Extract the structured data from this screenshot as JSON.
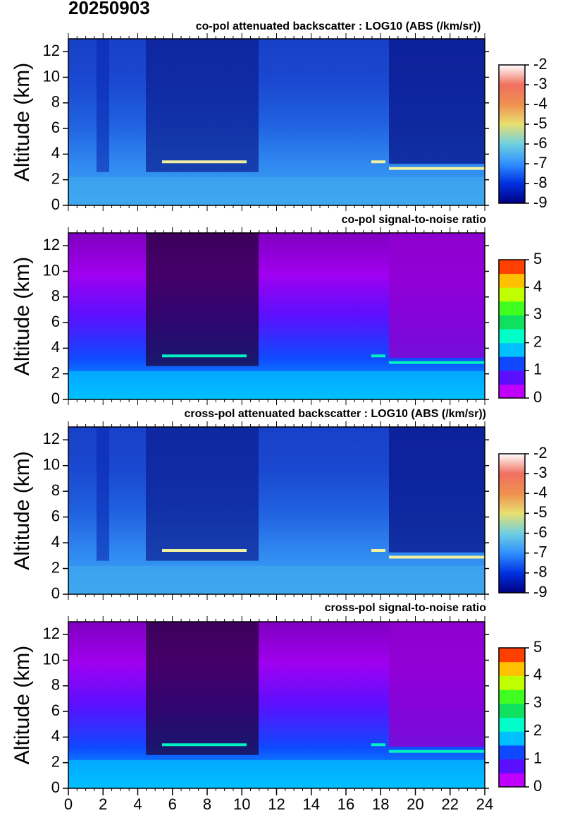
{
  "header": {
    "title": "20250903"
  },
  "chart_data": [
    {
      "type": "heatmap",
      "title": "co-pol attenuated backscatter : LOG10 (ABS (/km/sr))",
      "y_label": "Altitude (km)",
      "xlim": [
        0,
        24
      ],
      "ylim": [
        0,
        13
      ],
      "yticks": [
        0,
        2,
        4,
        6,
        8,
        10,
        12
      ],
      "colorbar": {
        "lim": [
          -9,
          -2
        ],
        "ticks": [
          -9,
          -8,
          -7,
          -6,
          -5,
          -4,
          -3,
          -2
        ],
        "discrete": false,
        "colors": [
          "#000080",
          "#0030e0",
          "#3090ff",
          "#70d0e0",
          "#e8e070",
          "#f09050",
          "#f07060",
          "#ffffff"
        ]
      }
    },
    {
      "type": "heatmap",
      "title": "co-pol signal-to-noise ratio",
      "y_label": "Altitude (km)",
      "xlim": [
        0,
        24
      ],
      "ylim": [
        0,
        13
      ],
      "yticks": [
        0,
        2,
        4,
        6,
        8,
        10,
        12
      ],
      "colorbar": {
        "lim": [
          0,
          5
        ],
        "ticks": [
          0,
          1,
          2,
          3,
          4,
          5
        ],
        "discrete": true,
        "colors": [
          "#c000ff",
          "#5a10ff",
          "#1048ff",
          "#00c0ff",
          "#00ffc8",
          "#10e060",
          "#40ff20",
          "#c0ff00",
          "#ffc000",
          "#ff4000"
        ]
      }
    },
    {
      "type": "heatmap",
      "title": "cross-pol attenuated backscatter : LOG10 (ABS (/km/sr))",
      "y_label": "Altitude (km)",
      "xlim": [
        0,
        24
      ],
      "ylim": [
        0,
        13
      ],
      "yticks": [
        0,
        2,
        4,
        6,
        8,
        10,
        12
      ],
      "colorbar": {
        "lim": [
          -9,
          -2
        ],
        "ticks": [
          -9,
          -8,
          -7,
          -6,
          -5,
          -4,
          -3,
          -2
        ],
        "discrete": false,
        "colors": [
          "#000080",
          "#0030e0",
          "#3090ff",
          "#70d0e0",
          "#e8e070",
          "#f09050",
          "#f07060",
          "#ffffff"
        ]
      }
    },
    {
      "type": "heatmap",
      "title": "cross-pol signal-to-noise ratio",
      "y_label": "Altitude (km)",
      "xlim": [
        0,
        24
      ],
      "ylim": [
        0,
        13
      ],
      "yticks": [
        0,
        2,
        4,
        6,
        8,
        10,
        12
      ],
      "xticks": [
        0,
        2,
        4,
        6,
        8,
        10,
        12,
        14,
        16,
        18,
        20,
        22,
        24
      ],
      "colorbar": {
        "lim": [
          0,
          5
        ],
        "ticks": [
          0,
          1,
          2,
          3,
          4,
          5
        ],
        "discrete": true,
        "colors": [
          "#c000ff",
          "#5a10ff",
          "#1048ff",
          "#00c0ff",
          "#00ffc8",
          "#10e060",
          "#40ff20",
          "#c0ff00",
          "#ffc000",
          "#ff4000"
        ]
      }
    }
  ]
}
